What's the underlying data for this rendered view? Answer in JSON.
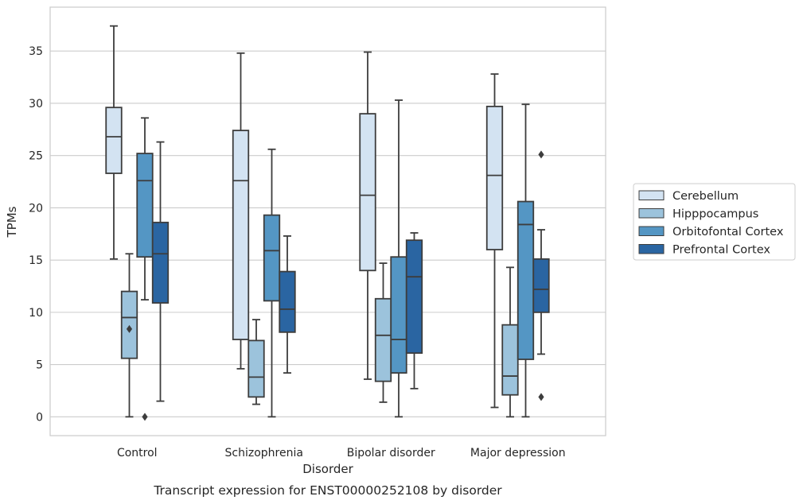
{
  "caption": "Transcript expression for ENST00000252108 by disorder",
  "chart_data": {
    "type": "boxplot",
    "xlabel": "Disorder",
    "ylabel": "TPMs",
    "ylim": [
      -1.8,
      39.2
    ],
    "yticks": [
      0,
      5,
      10,
      15,
      20,
      25,
      30,
      35
    ],
    "grid": "horizontal",
    "legend_position": "right",
    "categories": [
      "Control",
      "Schizophrenia",
      "Bipolar disorder",
      "Major depression"
    ],
    "series": [
      {
        "name": "Cerebellum",
        "color": "#d3e3f2",
        "boxes": [
          {
            "whisker_low": 15.1,
            "q1": 23.3,
            "median": 26.8,
            "q3": 29.6,
            "whisker_high": 37.4,
            "outliers": []
          },
          {
            "whisker_low": 4.6,
            "q1": 7.4,
            "median": 22.6,
            "q3": 27.4,
            "whisker_high": 34.8,
            "outliers": []
          },
          {
            "whisker_low": 3.6,
            "q1": 14.0,
            "median": 21.2,
            "q3": 29.0,
            "whisker_high": 34.9,
            "outliers": []
          },
          {
            "whisker_low": 0.9,
            "q1": 16.0,
            "median": 23.1,
            "q3": 29.7,
            "whisker_high": 32.8,
            "outliers": []
          }
        ]
      },
      {
        "name": "Hipppocampus",
        "color": "#9cc3dc",
        "boxes": [
          {
            "whisker_low": 0.0,
            "q1": 5.6,
            "median": 9.5,
            "q3": 12.0,
            "whisker_high": 15.6,
            "outliers": [
              8.4
            ]
          },
          {
            "whisker_low": 1.2,
            "q1": 1.9,
            "median": 3.8,
            "q3": 7.3,
            "whisker_high": 9.3,
            "outliers": []
          },
          {
            "whisker_low": 1.4,
            "q1": 3.4,
            "median": 7.8,
            "q3": 11.3,
            "whisker_high": 14.7,
            "outliers": []
          },
          {
            "whisker_low": 0.0,
            "q1": 2.1,
            "median": 3.9,
            "q3": 8.8,
            "whisker_high": 14.3,
            "outliers": []
          }
        ]
      },
      {
        "name": "Orbitofontal Cortex",
        "color": "#5496c4",
        "boxes": [
          {
            "whisker_low": 11.2,
            "q1": 15.3,
            "median": 22.6,
            "q3": 25.2,
            "whisker_high": 28.6,
            "outliers": [
              0.0
            ]
          },
          {
            "whisker_low": 0.0,
            "q1": 11.1,
            "median": 15.9,
            "q3": 19.3,
            "whisker_high": 25.6,
            "outliers": []
          },
          {
            "whisker_low": 0.0,
            "q1": 4.2,
            "median": 7.4,
            "q3": 15.3,
            "whisker_high": 30.3,
            "outliers": []
          },
          {
            "whisker_low": 0.0,
            "q1": 5.5,
            "median": 18.4,
            "q3": 20.6,
            "whisker_high": 29.9,
            "outliers": []
          }
        ]
      },
      {
        "name": "Prefrontal Cortex",
        "color": "#2a65a2",
        "boxes": [
          {
            "whisker_low": 1.5,
            "q1": 10.9,
            "median": 15.6,
            "q3": 18.6,
            "whisker_high": 26.3,
            "outliers": []
          },
          {
            "whisker_low": 4.2,
            "q1": 8.1,
            "median": 10.3,
            "q3": 13.9,
            "whisker_high": 17.3,
            "outliers": []
          },
          {
            "whisker_low": 2.7,
            "q1": 6.1,
            "median": 13.4,
            "q3": 16.9,
            "whisker_high": 17.6,
            "outliers": []
          },
          {
            "whisker_low": 6.0,
            "q1": 10.0,
            "median": 12.2,
            "q3": 15.1,
            "whisker_high": 17.9,
            "outliers": [
              25.1,
              1.9
            ]
          }
        ]
      }
    ]
  }
}
